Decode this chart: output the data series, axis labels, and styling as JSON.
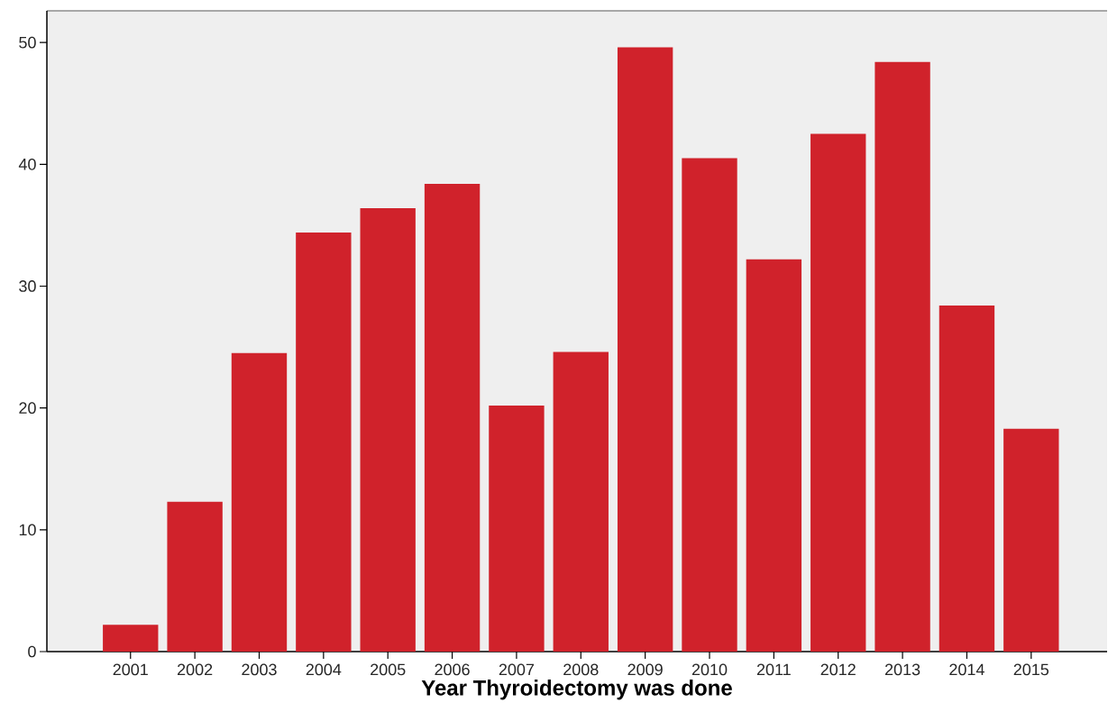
{
  "chart_data": {
    "type": "bar",
    "xlabel": "Year Thyroidectomy was done",
    "categories": [
      "2001",
      "2002",
      "2003",
      "2004",
      "2005",
      "2006",
      "2007",
      "2008",
      "2009",
      "2010",
      "2011",
      "2012",
      "2013",
      "2014",
      "2015"
    ],
    "values": [
      2.2,
      12.3,
      24.5,
      34.4,
      36.4,
      38.4,
      20.2,
      24.6,
      49.6,
      40.5,
      32.2,
      42.5,
      48.4,
      28.4,
      18.3
    ],
    "color": "#d0222b",
    "ylim": [
      0,
      52.6
    ],
    "yticks": [
      0,
      10,
      20,
      30,
      40,
      50
    ],
    "grid": false
  }
}
